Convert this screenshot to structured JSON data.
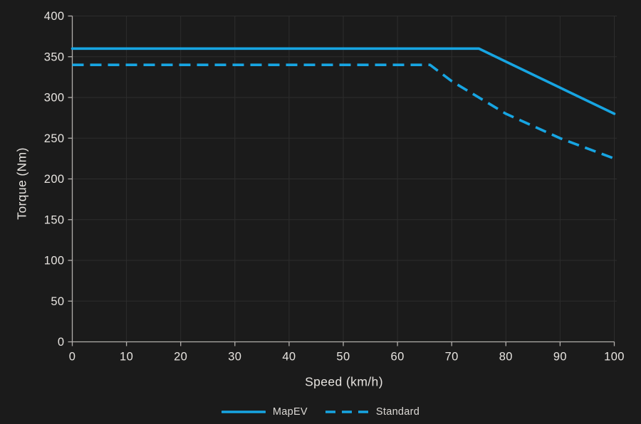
{
  "colors": {
    "background": "#1b1b1b",
    "grid": "#2d2d2d",
    "axis": "#b2afac",
    "tick_text": "#e6e3df",
    "accent": "#17a5e2"
  },
  "chart_data": {
    "type": "line",
    "title": "",
    "xlabel": "Speed (km/h)",
    "ylabel": "Torque (Nm)",
    "xlim": [
      0,
      100
    ],
    "ylim": [
      0,
      400
    ],
    "x_ticks": [
      0,
      10,
      20,
      30,
      40,
      50,
      60,
      70,
      80,
      90,
      100
    ],
    "y_ticks": [
      0,
      50,
      100,
      150,
      200,
      250,
      300,
      350,
      400
    ],
    "grid": true,
    "legend_position": "bottom-center",
    "series": [
      {
        "name": "MapEV",
        "style": "solid",
        "color": "#17a5e2",
        "points": [
          [
            0,
            360
          ],
          [
            75,
            360
          ],
          [
            80,
            344
          ],
          [
            90,
            312
          ],
          [
            100,
            280
          ]
        ]
      },
      {
        "name": "Standard",
        "style": "dashed",
        "color": "#17a5e2",
        "points": [
          [
            0,
            340
          ],
          [
            66,
            340
          ],
          [
            70,
            320
          ],
          [
            80,
            280
          ],
          [
            90,
            250
          ],
          [
            100,
            225
          ]
        ]
      }
    ]
  }
}
